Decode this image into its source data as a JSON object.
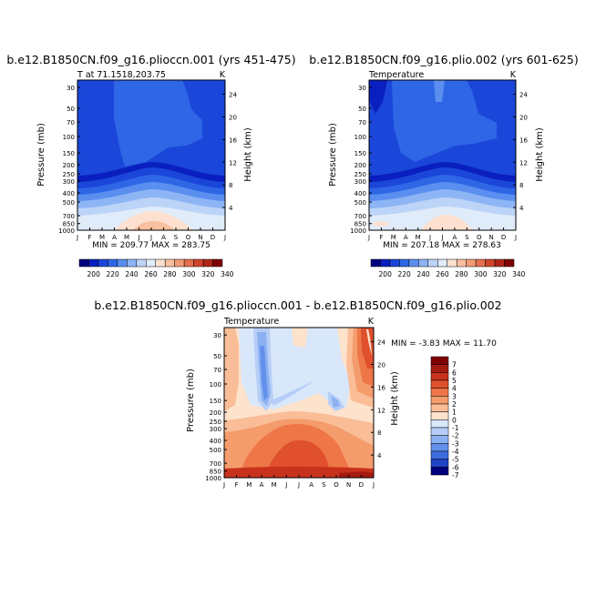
{
  "chart_data": [
    {
      "type": "heatmap",
      "title": "b.e12.B1850CN.f09_g16.plioccn.001 (yrs 451-475)",
      "subtitle_left": "T at 71.1518,203.75",
      "units": "K",
      "ylabel": "Pressure (mb)",
      "ylabel_right": "Height (km)",
      "pressure_ticks": [
        "30",
        "50",
        "70",
        "100",
        "150",
        "200",
        "250",
        "300",
        "400",
        "500",
        "700",
        "850",
        "1000"
      ],
      "height_ticks": [
        "24",
        "20",
        "16",
        "12",
        "8",
        "4"
      ],
      "months": [
        "J",
        "F",
        "M",
        "A",
        "M",
        "J",
        "J",
        "A",
        "S",
        "O",
        "N",
        "D",
        "J"
      ],
      "stats": "MIN = 209.77  MAX = 283.75",
      "colorbar_labels": [
        "200",
        "220",
        "240",
        "260",
        "280",
        "300",
        "320",
        "340"
      ]
    },
    {
      "type": "heatmap",
      "title": "b.e12.B1850CN.f09_g16.plio.002 (yrs 601-625)",
      "subtitle_left": "Temperature",
      "units": "K",
      "ylabel": "Pressure (mb)",
      "ylabel_right": "Height (km)",
      "pressure_ticks": [
        "30",
        "50",
        "70",
        "100",
        "150",
        "200",
        "250",
        "300",
        "400",
        "500",
        "700",
        "850",
        "1000"
      ],
      "height_ticks": [
        "24",
        "20",
        "16",
        "12",
        "8",
        "4"
      ],
      "months": [
        "J",
        "F",
        "M",
        "A",
        "M",
        "J",
        "J",
        "A",
        "S",
        "O",
        "N",
        "D",
        "J"
      ],
      "stats": "MIN = 207.18  MAX = 278.63",
      "colorbar_labels": [
        "200",
        "220",
        "240",
        "260",
        "280",
        "300",
        "320",
        "340"
      ]
    },
    {
      "type": "heatmap",
      "title": "b.e12.B1850CN.f09_g16.plioccn.001 - b.e12.B1850CN.f09_g16.plio.002",
      "subtitle_left": "Temperature",
      "units": "K",
      "ylabel": "Pressure (mb)",
      "ylabel_right": "Height (km)",
      "pressure_ticks": [
        "30",
        "50",
        "70",
        "100",
        "150",
        "200",
        "250",
        "300",
        "400",
        "500",
        "700",
        "850",
        "1000"
      ],
      "height_ticks": [
        "24",
        "20",
        "16",
        "12",
        "8",
        "4"
      ],
      "months": [
        "J",
        "F",
        "M",
        "A",
        "M",
        "J",
        "J",
        "A",
        "S",
        "O",
        "N",
        "D",
        "J"
      ],
      "stats": "MIN = -3.83  MAX = 11.70",
      "colorbar_labels": [
        "7",
        "6",
        "5",
        "4",
        "3",
        "2",
        "1",
        "0",
        "-1",
        "-2",
        "-3",
        "-4",
        "-5",
        "-6",
        "-7"
      ]
    }
  ],
  "colors": {
    "abs_scale": [
      "#00007f",
      "#0a1fbf",
      "#1a46d9",
      "#2e66e6",
      "#5a8ff0",
      "#8db5f5",
      "#bcd4f7",
      "#e0ecfa",
      "#fde0cf",
      "#f8bfa0",
      "#f19a76",
      "#e46f4e",
      "#cf452c",
      "#b0251a",
      "#7f0000"
    ],
    "diff_scale": [
      "#7f0000",
      "#a51a0e",
      "#c8321c",
      "#e0502c",
      "#ee7647",
      "#f59c6c",
      "#f9bd97",
      "#fde2cc",
      "#d9e7fb",
      "#b6cef7",
      "#8cb1f2",
      "#6290ea",
      "#3c6de0",
      "#1f44c4",
      "#00007f"
    ]
  }
}
